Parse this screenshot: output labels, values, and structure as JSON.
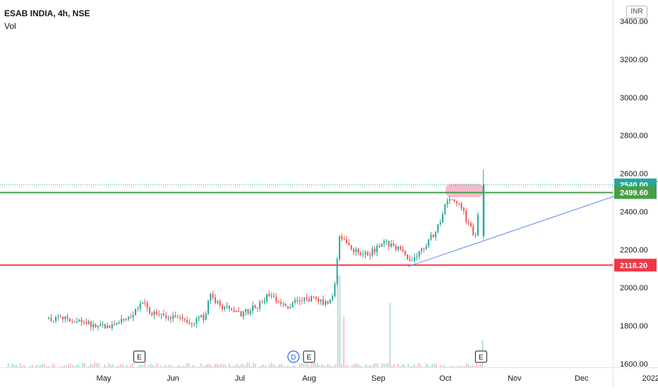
{
  "header": {
    "symbol": "ESAB INDIA, 4h, NSE",
    "volume_label": "Vol",
    "currency": "INR"
  },
  "chart_data": {
    "type": "candlestick",
    "y_axis": {
      "ticks": [
        1600,
        1800,
        2000,
        2200,
        2400,
        2600,
        2800,
        3000,
        3200,
        3400
      ],
      "tick_labels": [
        "1600.00",
        "1800.00",
        "2000.00",
        "2200.00",
        "2400.00",
        "2600.00",
        "2800.00",
        "3000.00",
        "3200.00",
        "3400.00"
      ],
      "range": [
        1600,
        3570
      ]
    },
    "x_axis": {
      "ticks": [
        "May",
        "Jun",
        "Jul",
        "Aug",
        "Sep",
        "Oct",
        "Nov",
        "Dec",
        "2022"
      ]
    },
    "price_labels": [
      {
        "text": "2540.00",
        "value": 2540,
        "color": "#26a69a"
      },
      {
        "text": "2499.60",
        "value": 2499.6,
        "color": "#43a047"
      },
      {
        "text": "2118.20",
        "value": 2118.2,
        "color": "#f23645"
      }
    ],
    "horizontal_lines": [
      {
        "value": 2499.6,
        "color": "#43a047"
      },
      {
        "value": 2118.2,
        "color": "#f23645"
      }
    ],
    "trendline": {
      "from": {
        "date": "2021-09-28",
        "value": 2110
      },
      "to": {
        "date": "2022-01-31",
        "value": 2610
      },
      "color": "#5b8def"
    },
    "highlight_zone": {
      "from_date": "2021-10-15",
      "to_date": "2021-11-01",
      "low": 2475,
      "high": 2545,
      "color": "#f5a3b8"
    },
    "event_markers": [
      {
        "label": "E",
        "date": "2021-05-29"
      },
      {
        "label": "D",
        "date": "2021-08-06"
      },
      {
        "label": "E",
        "date": "2021-08-13"
      },
      {
        "label": "E",
        "date": "2021-10-29"
      }
    ],
    "colors": {
      "up": "#26a69a",
      "down": "#ef5350"
    },
    "price_path": [
      [
        "2021-04-20",
        1840
      ],
      [
        "2021-05-01",
        1830
      ],
      [
        "2021-05-10",
        1800
      ],
      [
        "2021-05-18",
        1790
      ],
      [
        "2021-05-27",
        1860
      ],
      [
        "2021-06-01",
        1920
      ],
      [
        "2021-06-06",
        1860
      ],
      [
        "2021-06-15",
        1840
      ],
      [
        "2021-06-22",
        1810
      ],
      [
        "2021-06-29",
        1850
      ],
      [
        "2021-07-01",
        1960
      ],
      [
        "2021-07-07",
        1900
      ],
      [
        "2021-07-15",
        1860
      ],
      [
        "2021-07-22",
        1900
      ],
      [
        "2021-07-27",
        1960
      ],
      [
        "2021-08-03",
        1900
      ],
      [
        "2021-08-08",
        1920
      ],
      [
        "2021-08-16",
        1940
      ],
      [
        "2021-08-23",
        1910
      ],
      [
        "2021-08-26",
        2000
      ],
      [
        "2021-08-28",
        2280
      ],
      [
        "2021-09-03",
        2200
      ],
      [
        "2021-09-10",
        2170
      ],
      [
        "2021-09-17",
        2240
      ],
      [
        "2021-09-24",
        2200
      ],
      [
        "2021-09-28",
        2140
      ],
      [
        "2021-10-05",
        2210
      ],
      [
        "2021-10-12",
        2330
      ],
      [
        "2021-10-16",
        2480
      ],
      [
        "2021-10-21",
        2450
      ],
      [
        "2021-10-25",
        2330
      ],
      [
        "2021-10-28",
        2260
      ],
      [
        "2021-10-31",
        2540
      ]
    ],
    "volume_spikes": [
      {
        "date": "2021-08-28",
        "level": 1.0
      },
      {
        "date": "2021-08-30",
        "level": 0.55
      },
      {
        "date": "2021-09-20",
        "level": 0.7
      },
      {
        "date": "2021-09-02",
        "level": 0.3
      },
      {
        "date": "2021-10-31",
        "level": 0.3
      }
    ]
  }
}
